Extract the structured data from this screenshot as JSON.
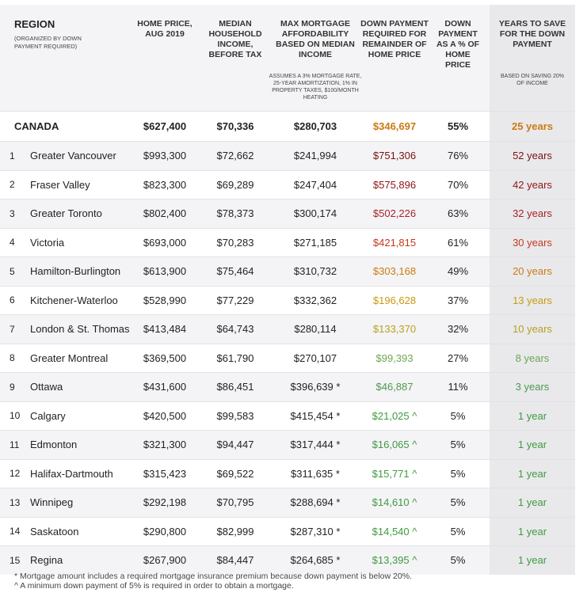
{
  "header": {
    "region_title": "REGION",
    "region_sub": "(ORGANIZED BY DOWN PAYMENT REQUIRED)",
    "home_price": "HOME PRICE, AUG 2019",
    "income": "MEDIAN HOUSEHOLD INCOME, BEFORE TAX",
    "mortgage": "MAX MORTGAGE AFFORDABILITY BASED ON MEDIAN INCOME",
    "mortgage_note": "ASSUMES A 3% MORTGAGE RATE, 25-YEAR AMORTIZATION, 1% IN PROPERTY TAXES, $100/MONTH HEATING",
    "down_payment": "DOWN PAYMENT REQUIRED FOR REMAINDER OF HOME PRICE",
    "down_pct": "DOWN PAYMENT AS A % OF HOME PRICE",
    "years": "YEARS TO SAVE FOR THE DOWN PAYMENT",
    "years_note": "BASED ON SAVING 20% OF INCOME"
  },
  "canada": {
    "name": "CANADA",
    "price": "$627,400",
    "income": "$70,336",
    "mortgage": "$280,703",
    "down": "$346,697",
    "pct": "55%",
    "years": "25 years",
    "color": "#cc7a12"
  },
  "rows": [
    {
      "num": "1",
      "name": "Greater Vancouver",
      "price": "$993,300",
      "income": "$72,662",
      "mortgage": "$241,994",
      "down": "$751,306",
      "pct": "76%",
      "years": "52 years",
      "color": "#7a1212"
    },
    {
      "num": "2",
      "name": "Fraser Valley",
      "price": "$823,300",
      "income": "$69,289",
      "mortgage": "$247,404",
      "down": "$575,896",
      "pct": "70%",
      "years": "42 years",
      "color": "#8e1616"
    },
    {
      "num": "3",
      "name": "Greater Toronto",
      "price": "$802,400",
      "income": "$78,373",
      "mortgage": "$300,174",
      "down": "$502,226",
      "pct": "63%",
      "years": "32 years",
      "color": "#a8232a"
    },
    {
      "num": "4",
      "name": "Victoria",
      "price": "$693,000",
      "income": "$70,283",
      "mortgage": "$271,185",
      "down": "$421,815",
      "pct": "61%",
      "years": "30 years",
      "color": "#c23a1e"
    },
    {
      "num": "5",
      "name": "Hamilton-Burlington",
      "price": "$613,900",
      "income": "$75,464",
      "mortgage": "$310,732",
      "down": "$303,168",
      "pct": "49%",
      "years": "20 years",
      "color": "#cc7a12"
    },
    {
      "num": "6",
      "name": "Kitchener-Waterloo",
      "price": "$528,990",
      "income": "$77,229",
      "mortgage": "$332,362",
      "down": "$196,628",
      "pct": "37%",
      "years": "13 years",
      "color": "#c99a12"
    },
    {
      "num": "7",
      "name": "London & St. Thomas",
      "price": "$413,484",
      "income": "$64,743",
      "mortgage": "$280,114",
      "down": "$133,370",
      "pct": "32%",
      "years": "10 years",
      "color": "#b7a020"
    },
    {
      "num": "8",
      "name": "Greater Montreal",
      "price": "$369,500",
      "income": "$61,790",
      "mortgage": "$270,107",
      "down": "$99,393",
      "pct": "27%",
      "years": "8 years",
      "color": "#6aa84f"
    },
    {
      "num": "9",
      "name": "Ottawa",
      "price": "$431,600",
      "income": "$86,451",
      "mortgage": "$396,639 *",
      "down": "$46,887",
      "pct": "11%",
      "years": "3 years",
      "color": "#4c9a4c"
    },
    {
      "num": "10",
      "name": "Calgary",
      "price": "$420,500",
      "income": "$99,583",
      "mortgage": "$415,454 *",
      "down": "$21,025 ^",
      "pct": "5%",
      "years": "1 year",
      "color": "#3f9a3f"
    },
    {
      "num": "11",
      "name": "Edmonton",
      "price": "$321,300",
      "income": "$94,447",
      "mortgage": "$317,444 *",
      "down": "$16,065 ^",
      "pct": "5%",
      "years": "1 year",
      "color": "#3f9a3f"
    },
    {
      "num": "12",
      "name": "Halifax-Dartmouth",
      "price": "$315,423",
      "income": "$69,522",
      "mortgage": "$311,635 *",
      "down": "$15,771 ^",
      "pct": "5%",
      "years": "1 year",
      "color": "#3f9a3f"
    },
    {
      "num": "13",
      "name": "Winnipeg",
      "price": "$292,198",
      "income": "$70,795",
      "mortgage": "$288,694 *",
      "down": "$14,610 ^",
      "pct": "5%",
      "years": "1 year",
      "color": "#3f9a3f"
    },
    {
      "num": "14",
      "name": "Saskatoon",
      "price": "$290,800",
      "income": "$82,999",
      "mortgage": "$287,310 *",
      "down": "$14,540 ^",
      "pct": "5%",
      "years": "1 year",
      "color": "#3f9a3f"
    },
    {
      "num": "15",
      "name": "Regina",
      "price": "$267,900",
      "income": "$84,447",
      "mortgage": "$264,685 *",
      "down": "$13,395 ^",
      "pct": "5%",
      "years": "1 year",
      "color": "#3f9a3f"
    }
  ],
  "notes": {
    "mortgage": "* Mortgage amount includes a required mortgage insurance premium because down payment is below 20%.",
    "down": "^ A minimum down payment of 5% is required in order to obtain a mortgage."
  }
}
